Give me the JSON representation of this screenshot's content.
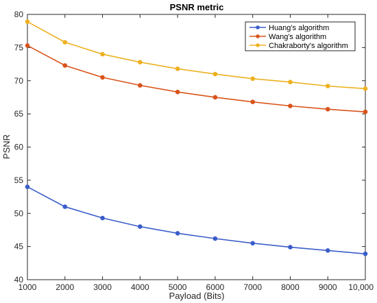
{
  "chart_data": {
    "type": "line",
    "title": "PSNR metric",
    "xlabel": "Payload (Bits)",
    "ylabel": "PSNR",
    "x": [
      1000,
      2000,
      3000,
      4000,
      5000,
      6000,
      7000,
      8000,
      9000,
      10000
    ],
    "x_tick_labels": [
      "1000",
      "2000",
      "3000",
      "4000",
      "5000",
      "6000",
      "7000",
      "8000",
      "9000",
      "10,000"
    ],
    "y_ticks": [
      40,
      45,
      50,
      55,
      60,
      65,
      70,
      75,
      80
    ],
    "xlim": [
      1000,
      10000
    ],
    "ylim": [
      40,
      80
    ],
    "grid": false,
    "legend_position": "top-right",
    "series": [
      {
        "name": "Huang's algorithm",
        "color": "#3A5DC9",
        "values": [
          54.0,
          51.0,
          49.3,
          48.0,
          47.0,
          46.2,
          45.5,
          44.9,
          44.4,
          43.9
        ]
      },
      {
        "name": "Wang's algorithm",
        "color": "#D95319",
        "values": [
          75.3,
          72.3,
          70.5,
          69.3,
          68.3,
          67.5,
          66.8,
          66.2,
          65.7,
          65.3
        ]
      },
      {
        "name": "Chakraborty's algorithm",
        "color": "#EDB120",
        "values": [
          78.9,
          75.8,
          74.0,
          72.8,
          71.8,
          71.0,
          70.3,
          69.8,
          69.2,
          68.8
        ]
      }
    ]
  }
}
